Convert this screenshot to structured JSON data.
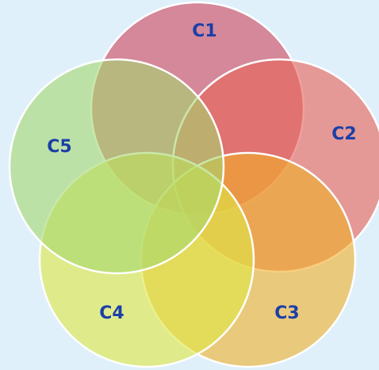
{
  "circles": [
    {
      "label": "C1"
    },
    {
      "label": "C2"
    },
    {
      "label": "C3"
    },
    {
      "label": "C4"
    },
    {
      "label": "C5"
    }
  ]
}
